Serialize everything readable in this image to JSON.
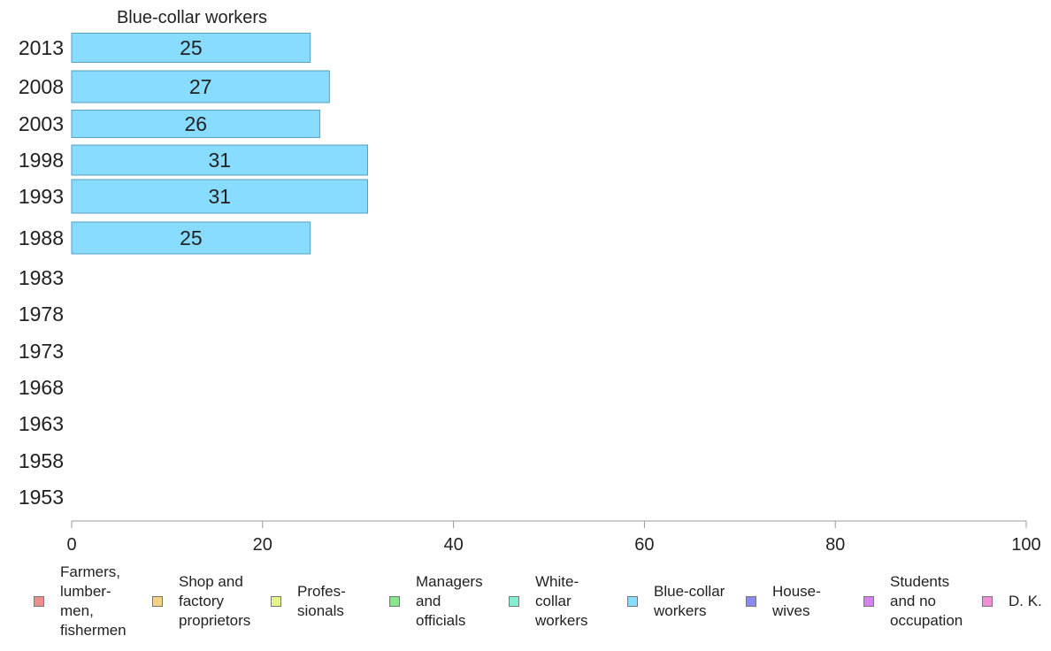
{
  "chart_data": {
    "type": "bar",
    "orientation": "horizontal",
    "title": "Blue-collar workers",
    "categories": [
      "2013",
      "2008",
      "2003",
      "1998",
      "1993",
      "1988",
      "1983",
      "1978",
      "1973",
      "1968",
      "1963",
      "1958",
      "1953"
    ],
    "series": [
      {
        "name": "Blue-collar workers",
        "values": [
          25,
          27,
          26,
          31,
          31,
          25,
          null,
          null,
          null,
          null,
          null,
          null,
          null
        ]
      }
    ],
    "data_labels": [
      "25",
      "27",
      "26",
      "31",
      "31",
      "25",
      "",
      "",
      "",
      "",
      "",
      "",
      ""
    ],
    "xlim": [
      0,
      100
    ],
    "x_ticks": [
      "0",
      "20",
      "40",
      "60",
      "80",
      "100"
    ],
    "bar_color": "#87dcff",
    "bar_edge_color": "#5a9fbf",
    "grid": false,
    "legend_position": "bottom"
  },
  "legend": [
    {
      "label": "Farmers,\nlumber-\nmen,\nfishermen",
      "color": "#f08c8c"
    },
    {
      "label": "Shop and\nfactory\nproprietors",
      "color": "#f5d27d"
    },
    {
      "label": "Profes-\nsionals",
      "color": "#e4f58c"
    },
    {
      "label": "Managers\nand\nofficials",
      "color": "#87e687"
    },
    {
      "label": "White-\ncollar\nworkers",
      "color": "#82f0d2"
    },
    {
      "label": "Blue-collar\nworkers",
      "color": "#87dcff"
    },
    {
      "label": "House-\nwives",
      "color": "#8c8cf0"
    },
    {
      "label": "Students\nand no\noccupation",
      "color": "#d782f5"
    },
    {
      "label": "D. K.",
      "color": "#f58cd7"
    }
  ]
}
